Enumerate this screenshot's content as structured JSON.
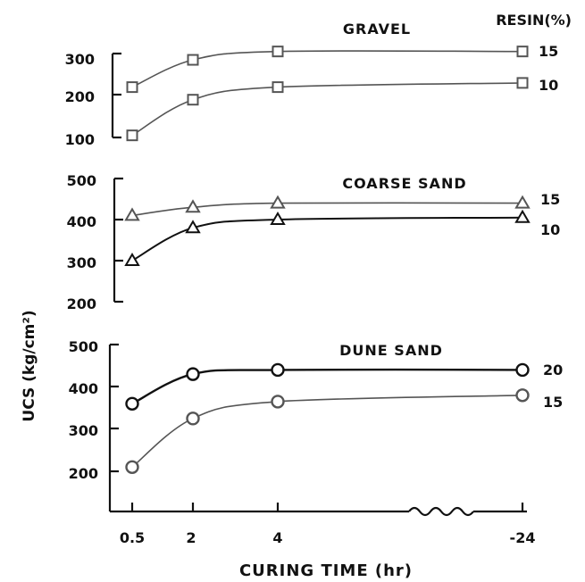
{
  "chart_data": {
    "type": "line",
    "ylabel": "UCS (kg/cm²)",
    "xlabel": "CURING TIME (hr)",
    "x_ticks": [
      "0.5",
      "2",
      "4",
      "-24"
    ],
    "legend_title": "RESIN(%)",
    "panels": [
      {
        "title": "GRAVEL",
        "marker": "square",
        "yticks": [
          "300",
          "200",
          "100"
        ],
        "ylim": [
          100,
          300
        ],
        "series": [
          {
            "name": "15",
            "x": [
              "0.5",
              "2",
              "4",
              "24"
            ],
            "values": [
              220,
              285,
              305,
              305
            ]
          },
          {
            "name": "10",
            "x": [
              "0.5",
              "2",
              "4",
              "24"
            ],
            "values": [
              105,
              190,
              220,
              230
            ]
          }
        ]
      },
      {
        "title": "COARSE SAND",
        "marker": "triangle",
        "yticks": [
          "500",
          "400",
          "300",
          "200"
        ],
        "ylim": [
          200,
          500
        ],
        "series": [
          {
            "name": "15",
            "x": [
              "0.5",
              "2",
              "4",
              "24"
            ],
            "values": [
              410,
              430,
              440,
              440
            ]
          },
          {
            "name": "10",
            "x": [
              "0.5",
              "2",
              "4",
              "24"
            ],
            "values": [
              300,
              380,
              400,
              405
            ]
          }
        ]
      },
      {
        "title": "DUNE SAND",
        "marker": "circle",
        "yticks": [
          "500",
          "400",
          "300",
          "200"
        ],
        "ylim": [
          200,
          500
        ],
        "series": [
          {
            "name": "20",
            "x": [
              "0.5",
              "2",
              "4",
              "24"
            ],
            "values": [
              360,
              430,
              440,
              440
            ]
          },
          {
            "name": "15",
            "x": [
              "0.5",
              "2",
              "4",
              "24"
            ],
            "values": [
              210,
              325,
              365,
              380
            ]
          }
        ]
      }
    ]
  }
}
